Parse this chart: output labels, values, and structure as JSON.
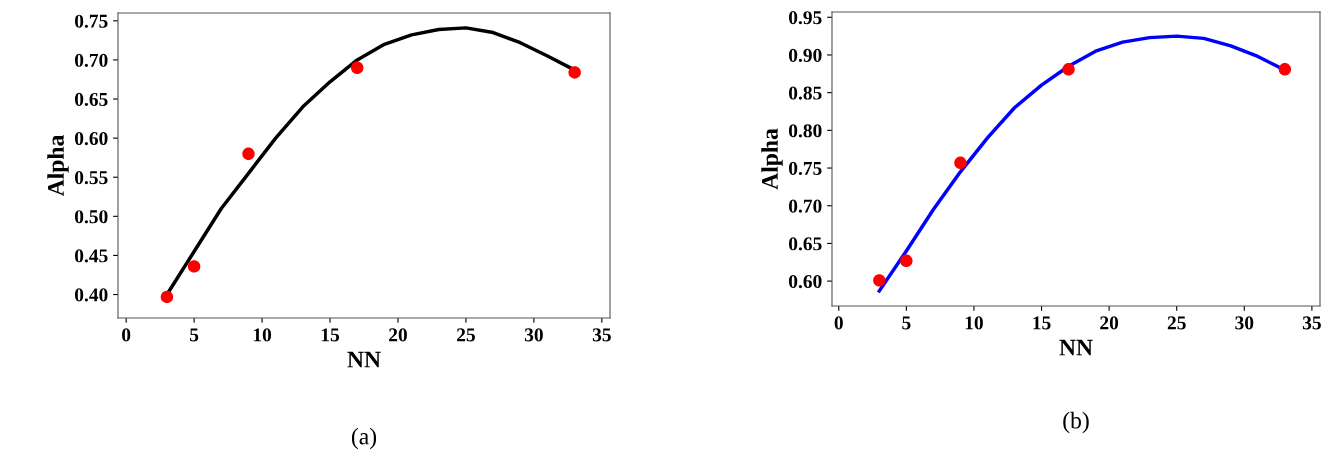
{
  "chart_data": [
    {
      "type": "scatter",
      "xlabel": "NN",
      "ylabel": "Alpha",
      "annotations": [
        "(a)"
      ],
      "xlim": [
        -0.6,
        35.6
      ],
      "ylim": [
        0.37,
        0.76
      ],
      "xticks": [
        0,
        5,
        10,
        15,
        20,
        25,
        30,
        35
      ],
      "yticks": [
        {
          "value": 0.4,
          "label": "0.40"
        },
        {
          "value": 0.45,
          "label": "0.45"
        },
        {
          "value": 0.5,
          "label": "0.50"
        },
        {
          "value": 0.55,
          "label": "0.55"
        },
        {
          "value": 0.6,
          "label": "0.60"
        },
        {
          "value": 0.65,
          "label": "0.65"
        },
        {
          "value": 0.7,
          "label": "0.70"
        },
        {
          "value": 0.75,
          "label": "0.75"
        }
      ],
      "grid": false,
      "legend": false,
      "series": [
        {
          "type": "line",
          "color": "#000000",
          "x": [
            3,
            5,
            7,
            9,
            11,
            13,
            15,
            17,
            19,
            21,
            23,
            25,
            27,
            29,
            31,
            33
          ],
          "values": [
            0.4,
            0.455,
            0.51,
            0.555,
            0.6,
            0.64,
            0.672,
            0.7,
            0.72,
            0.732,
            0.739,
            0.741,
            0.735,
            0.722,
            0.705,
            0.687
          ],
          "marker": "none",
          "line_style": "solid"
        },
        {
          "color": "#ff0000",
          "x": [
            3,
            5,
            9,
            17,
            33
          ],
          "values": [
            0.397,
            0.436,
            0.58,
            0.69,
            0.684
          ],
          "marker": "circle"
        }
      ]
    },
    {
      "type": "scatter",
      "xlabel": "NN",
      "ylabel": "Alpha",
      "annotations": [
        "(b)"
      ],
      "xlim": [
        -0.5,
        35.6
      ],
      "ylim": [
        0.567,
        0.957
      ],
      "xticks": [
        0,
        5,
        10,
        15,
        20,
        25,
        30,
        35
      ],
      "yticks": [
        {
          "value": 0.6,
          "label": "0.60"
        },
        {
          "value": 0.65,
          "label": "0.65"
        },
        {
          "value": 0.7,
          "label": "0.70"
        },
        {
          "value": 0.75,
          "label": "0.75"
        },
        {
          "value": 0.8,
          "label": "0.80"
        },
        {
          "value": 0.85,
          "label": "0.85"
        },
        {
          "value": 0.9,
          "label": "0.90"
        },
        {
          "value": 0.95,
          "label": "0.95"
        }
      ],
      "grid": false,
      "legend": false,
      "series": [
        {
          "type": "line",
          "color": "#0000ff",
          "x": [
            3,
            5,
            7,
            9,
            11,
            13,
            15,
            17,
            19,
            21,
            23,
            25,
            27,
            29,
            31,
            33
          ],
          "values": [
            0.587,
            0.64,
            0.695,
            0.745,
            0.79,
            0.83,
            0.86,
            0.885,
            0.905,
            0.917,
            0.923,
            0.925,
            0.922,
            0.912,
            0.898,
            0.88
          ],
          "marker": "none",
          "line_style": "solid"
        },
        {
          "color": "#ff0000",
          "x": [
            3,
            5,
            9,
            17,
            33
          ],
          "values": [
            0.601,
            0.627,
            0.757,
            0.881,
            0.881
          ],
          "marker": "circle"
        }
      ]
    }
  ]
}
